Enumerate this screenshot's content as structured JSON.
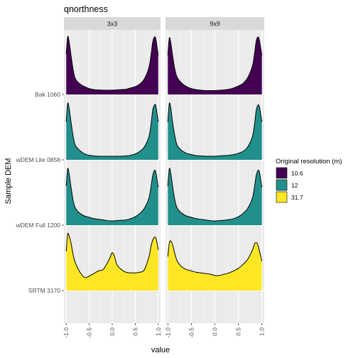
{
  "chart_data": {
    "type": "area",
    "subtype": "ridgeline density, faceted",
    "title": "qnorthness",
    "xlabel": "value",
    "ylabel": "Sample DEM",
    "xlim": [
      -1.05,
      1.05
    ],
    "x_ticks": [
      -1.0,
      -0.5,
      0.0,
      0.5,
      1.0
    ],
    "x_tick_labels": [
      "-1.0",
      "-0.5",
      "0.0",
      "0.5",
      "1.0"
    ],
    "grid": true,
    "facets": [
      "3x3",
      "9x9"
    ],
    "rows": [
      "Bak 1060",
      "wDEM Lite 0858",
      "wDEM Full 1200",
      "SRTM 3170"
    ],
    "legend": {
      "title": "Original resolution (m)",
      "placement": "right",
      "items": [
        {
          "label": "10.6",
          "color": "#440154"
        },
        {
          "label": "12",
          "color": "#21908C"
        },
        {
          "label": "31.7",
          "color": "#FDE725"
        }
      ]
    },
    "series": [
      {
        "facet": "3x3",
        "row": "Bak 1060",
        "resolution": "10.6",
        "color": "#440154",
        "x": [
          -1.0,
          -0.97,
          -0.94,
          -0.9,
          -0.85,
          -0.8,
          -0.7,
          -0.6,
          -0.5,
          -0.4,
          -0.3,
          -0.2,
          -0.1,
          0.0,
          0.1,
          0.2,
          0.3,
          0.4,
          0.5,
          0.6,
          0.7,
          0.8,
          0.85,
          0.88,
          0.92,
          0.95,
          1.0
        ],
        "density": [
          0.62,
          0.88,
          0.82,
          0.62,
          0.38,
          0.24,
          0.16,
          0.12,
          0.09,
          0.075,
          0.07,
          0.065,
          0.065,
          0.065,
          0.07,
          0.075,
          0.08,
          0.1,
          0.12,
          0.16,
          0.24,
          0.42,
          0.64,
          0.8,
          0.88,
          0.84,
          0.6
        ]
      },
      {
        "facet": "9x9",
        "row": "Bak 1060",
        "resolution": "10.6",
        "color": "#440154",
        "x": [
          -1.0,
          -0.97,
          -0.94,
          -0.9,
          -0.85,
          -0.8,
          -0.7,
          -0.6,
          -0.5,
          -0.4,
          -0.3,
          -0.2,
          -0.1,
          0.0,
          0.1,
          0.2,
          0.3,
          0.4,
          0.5,
          0.6,
          0.7,
          0.8,
          0.85,
          0.88,
          0.92,
          0.95,
          1.0
        ],
        "density": [
          0.6,
          0.86,
          0.8,
          0.6,
          0.38,
          0.26,
          0.17,
          0.12,
          0.09,
          0.075,
          0.065,
          0.06,
          0.06,
          0.06,
          0.065,
          0.07,
          0.08,
          0.1,
          0.13,
          0.17,
          0.26,
          0.44,
          0.66,
          0.82,
          0.88,
          0.82,
          0.6
        ]
      },
      {
        "facet": "3x3",
        "row": "wDEM Lite 0858",
        "resolution": "12",
        "color": "#21908C",
        "x": [
          -1.0,
          -0.97,
          -0.94,
          -0.9,
          -0.85,
          -0.8,
          -0.7,
          -0.6,
          -0.5,
          -0.4,
          -0.3,
          -0.2,
          -0.1,
          0.0,
          0.1,
          0.2,
          0.3,
          0.4,
          0.5,
          0.6,
          0.7,
          0.8,
          0.85,
          0.88,
          0.92,
          0.95,
          1.0
        ],
        "density": [
          0.58,
          0.86,
          0.8,
          0.6,
          0.36,
          0.22,
          0.14,
          0.09,
          0.07,
          0.06,
          0.055,
          0.055,
          0.055,
          0.055,
          0.055,
          0.055,
          0.06,
          0.07,
          0.09,
          0.13,
          0.2,
          0.36,
          0.58,
          0.76,
          0.84,
          0.82,
          0.58
        ]
      },
      {
        "facet": "9x9",
        "row": "wDEM Lite 0858",
        "resolution": "12",
        "color": "#21908C",
        "x": [
          -1.0,
          -0.97,
          -0.94,
          -0.9,
          -0.85,
          -0.8,
          -0.7,
          -0.6,
          -0.5,
          -0.4,
          -0.3,
          -0.2,
          -0.1,
          0.0,
          0.1,
          0.2,
          0.3,
          0.4,
          0.5,
          0.6,
          0.7,
          0.8,
          0.85,
          0.88,
          0.92,
          0.95,
          1.0
        ],
        "density": [
          0.58,
          0.86,
          0.8,
          0.58,
          0.36,
          0.22,
          0.14,
          0.1,
          0.08,
          0.065,
          0.06,
          0.055,
          0.055,
          0.055,
          0.06,
          0.065,
          0.07,
          0.08,
          0.1,
          0.13,
          0.2,
          0.36,
          0.58,
          0.76,
          0.84,
          0.8,
          0.58
        ]
      },
      {
        "facet": "3x3",
        "row": "wDEM Full 1200",
        "resolution": "12",
        "color": "#21908C",
        "x": [
          -1.0,
          -0.97,
          -0.94,
          -0.9,
          -0.85,
          -0.8,
          -0.7,
          -0.6,
          -0.5,
          -0.4,
          -0.3,
          -0.2,
          -0.1,
          0.0,
          0.1,
          0.2,
          0.3,
          0.4,
          0.5,
          0.6,
          0.7,
          0.8,
          0.85,
          0.88,
          0.92,
          0.95,
          1.0
        ],
        "density": [
          0.6,
          0.86,
          0.8,
          0.6,
          0.38,
          0.26,
          0.18,
          0.14,
          0.12,
          0.1,
          0.09,
          0.08,
          0.07,
          0.065,
          0.07,
          0.075,
          0.08,
          0.1,
          0.13,
          0.18,
          0.26,
          0.42,
          0.62,
          0.76,
          0.84,
          0.8,
          0.58
        ]
      },
      {
        "facet": "9x9",
        "row": "wDEM Full 1200",
        "resolution": "12",
        "color": "#21908C",
        "x": [
          -1.0,
          -0.97,
          -0.94,
          -0.9,
          -0.85,
          -0.8,
          -0.7,
          -0.6,
          -0.5,
          -0.4,
          -0.3,
          -0.2,
          -0.1,
          0.0,
          0.1,
          0.2,
          0.3,
          0.4,
          0.5,
          0.6,
          0.7,
          0.8,
          0.85,
          0.88,
          0.92,
          0.95,
          1.0
        ],
        "density": [
          0.6,
          0.86,
          0.8,
          0.6,
          0.38,
          0.26,
          0.18,
          0.14,
          0.12,
          0.1,
          0.09,
          0.08,
          0.07,
          0.065,
          0.07,
          0.075,
          0.085,
          0.1,
          0.13,
          0.18,
          0.26,
          0.42,
          0.62,
          0.76,
          0.84,
          0.8,
          0.58
        ]
      },
      {
        "facet": "3x3",
        "row": "SRTM 3170",
        "resolution": "31.7",
        "color": "#FDE725",
        "x": [
          -1.0,
          -0.97,
          -0.94,
          -0.9,
          -0.85,
          -0.8,
          -0.7,
          -0.6,
          -0.5,
          -0.4,
          -0.3,
          -0.2,
          -0.1,
          -0.05,
          0.0,
          0.05,
          0.1,
          0.2,
          0.3,
          0.4,
          0.5,
          0.6,
          0.7,
          0.8,
          0.85,
          0.9,
          0.95,
          1.0
        ],
        "density": [
          0.6,
          0.86,
          0.84,
          0.74,
          0.55,
          0.42,
          0.28,
          0.2,
          0.22,
          0.26,
          0.3,
          0.32,
          0.43,
          0.5,
          0.58,
          0.52,
          0.4,
          0.32,
          0.28,
          0.27,
          0.27,
          0.28,
          0.32,
          0.52,
          0.7,
          0.8,
          0.8,
          0.62
        ]
      },
      {
        "facet": "9x9",
        "row": "SRTM 3170",
        "resolution": "31.7",
        "color": "#FDE725",
        "x": [
          -1.0,
          -0.97,
          -0.94,
          -0.9,
          -0.85,
          -0.8,
          -0.7,
          -0.6,
          -0.5,
          -0.4,
          -0.3,
          -0.2,
          -0.1,
          0.0,
          0.1,
          0.2,
          0.3,
          0.4,
          0.5,
          0.6,
          0.7,
          0.8,
          0.85,
          0.9,
          0.95,
          1.0
        ],
        "density": [
          0.52,
          0.72,
          0.76,
          0.7,
          0.56,
          0.45,
          0.36,
          0.32,
          0.3,
          0.28,
          0.27,
          0.26,
          0.25,
          0.23,
          0.23,
          0.25,
          0.27,
          0.3,
          0.34,
          0.4,
          0.48,
          0.62,
          0.72,
          0.72,
          0.6,
          0.45
        ]
      }
    ]
  }
}
